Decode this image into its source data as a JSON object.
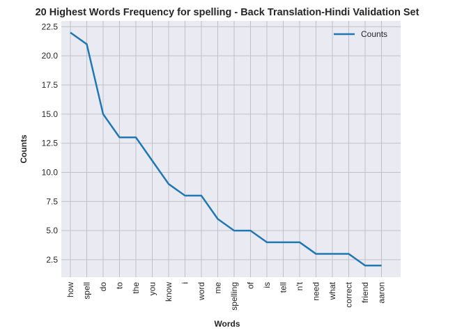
{
  "chart_data": {
    "type": "line",
    "title": "20 Highest Words Frequency for spelling - Back Translation-Hindi Validation Set",
    "xlabel": "Words",
    "ylabel": "Counts",
    "categories": [
      "how",
      "spell",
      "do",
      "to",
      "the",
      "you",
      "know",
      "i",
      "word",
      "me",
      "spelling",
      "of",
      "is",
      "tell",
      "n't",
      "need",
      "what",
      "correct",
      "friend",
      "aaron"
    ],
    "series": [
      {
        "name": "Counts",
        "values": [
          22,
          21,
          15,
          13,
          13,
          11,
          9,
          8,
          8,
          6,
          5,
          5,
          4,
          4,
          4,
          3,
          3,
          3,
          2,
          2
        ]
      }
    ],
    "ylim": [
      1.0,
      23.0
    ],
    "yticks": [
      "2.5",
      "5.0",
      "7.5",
      "10.0",
      "12.5",
      "15.0",
      "17.5",
      "20.0",
      "22.5"
    ],
    "grid": true,
    "legend_position": "top-right",
    "colors": {
      "line": "#1f77b4",
      "plot_bg": "#eaeaf2",
      "grid": "#c0c0c8"
    }
  }
}
